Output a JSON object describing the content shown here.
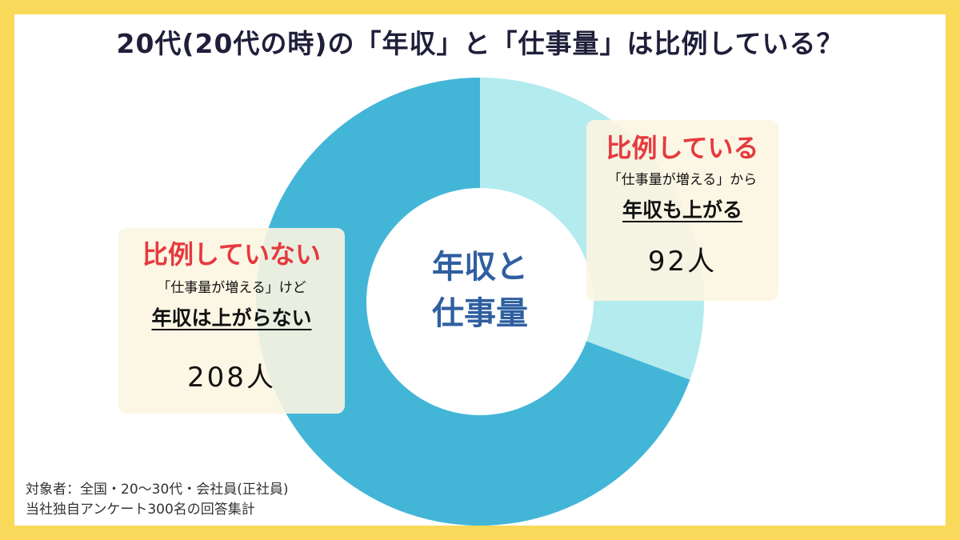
{
  "title": "20代(20代の時)の「年収」と「仕事量」は比例している？",
  "center_label": {
    "line1": "年収と",
    "line2": "仕事量"
  },
  "colors": {
    "frame": "#fad85a",
    "slice_proportional": "#b3ebef",
    "slice_not_proportional": "#43b6d8",
    "accent_red": "#e53a3f",
    "center_text": "#2f5fa0"
  },
  "chart_data": {
    "type": "pie",
    "donut": true,
    "unit": "人",
    "slices": [
      {
        "key": "proportional",
        "label": "比例している",
        "sublabel": "「仕事量が増える」から",
        "key_phrase": "年収も上がる",
        "value": 92,
        "value_label": "92人"
      },
      {
        "key": "not_proportional",
        "label": "比例していない",
        "sublabel": "「仕事量が増える」けど",
        "key_phrase": "年収は上がらない",
        "value": 208,
        "value_label": "208人"
      }
    ],
    "total": 300
  },
  "footnote": {
    "line1": "対象者：全国・20〜30代・会社員(正社員)",
    "line2": "当社独自アンケート300名の回答集計"
  }
}
